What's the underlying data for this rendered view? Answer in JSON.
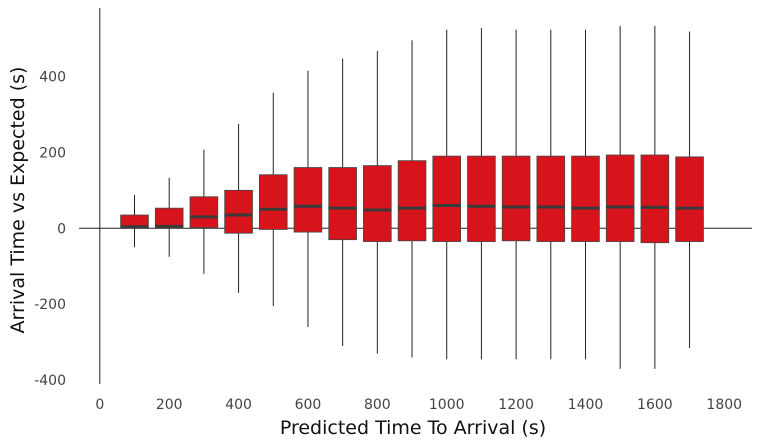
{
  "chart_data": {
    "type": "boxplot",
    "xlabel": "Predicted Time To Arrival (s)",
    "ylabel": "Arrival Time vs Expected (s)",
    "xlim": [
      -60,
      1880
    ],
    "ylim": [
      -410,
      580
    ],
    "xticks": [
      0,
      200,
      400,
      600,
      800,
      1000,
      1200,
      1400,
      1600,
      1800
    ],
    "xtick_labels": [
      "0",
      "200",
      "400",
      "600",
      "800",
      "1000",
      "1200",
      "1400",
      "1600",
      "1800"
    ],
    "yticks": [
      -400,
      -200,
      0,
      200,
      400
    ],
    "ytick_labels": [
      "-400",
      "-200",
      "0",
      "200",
      "400"
    ],
    "grid": false,
    "box_color": "#d7141c",
    "median_color": "#3a3a3a",
    "box_width": 80,
    "boxes": [
      {
        "x": 0,
        "min": -410,
        "q1": 0,
        "median": 0,
        "q3": 0,
        "max": 580
      },
      {
        "x": 100,
        "min": -50,
        "q1": 0,
        "median": 4,
        "q3": 35,
        "max": 88
      },
      {
        "x": 200,
        "min": -75,
        "q1": 0,
        "median": 5,
        "q3": 53,
        "max": 133
      },
      {
        "x": 300,
        "min": -120,
        "q1": 2,
        "median": 30,
        "q3": 83,
        "max": 207
      },
      {
        "x": 400,
        "min": -170,
        "q1": -13,
        "median": 35,
        "q3": 100,
        "max": 275
      },
      {
        "x": 500,
        "min": -205,
        "q1": -3,
        "median": 50,
        "q3": 141,
        "max": 357
      },
      {
        "x": 600,
        "min": -260,
        "q1": -10,
        "median": 58,
        "q3": 160,
        "max": 415
      },
      {
        "x": 700,
        "min": -310,
        "q1": -30,
        "median": 53,
        "q3": 160,
        "max": 447
      },
      {
        "x": 800,
        "min": -330,
        "q1": -35,
        "median": 48,
        "q3": 165,
        "max": 467
      },
      {
        "x": 900,
        "min": -340,
        "q1": -33,
        "median": 53,
        "q3": 178,
        "max": 495
      },
      {
        "x": 1000,
        "min": -345,
        "q1": -35,
        "median": 60,
        "q3": 190,
        "max": 523
      },
      {
        "x": 1100,
        "min": -345,
        "q1": -35,
        "median": 58,
        "q3": 190,
        "max": 527
      },
      {
        "x": 1200,
        "min": -345,
        "q1": -33,
        "median": 56,
        "q3": 190,
        "max": 523
      },
      {
        "x": 1300,
        "min": -345,
        "q1": -35,
        "median": 56,
        "q3": 190,
        "max": 523
      },
      {
        "x": 1400,
        "min": -345,
        "q1": -35,
        "median": 53,
        "q3": 190,
        "max": 523
      },
      {
        "x": 1500,
        "min": -370,
        "q1": -35,
        "median": 56,
        "q3": 193,
        "max": 533
      },
      {
        "x": 1600,
        "min": -370,
        "q1": -38,
        "median": 55,
        "q3": 193,
        "max": 533
      },
      {
        "x": 1700,
        "min": -315,
        "q1": -35,
        "median": 53,
        "q3": 188,
        "max": 518
      }
    ]
  }
}
